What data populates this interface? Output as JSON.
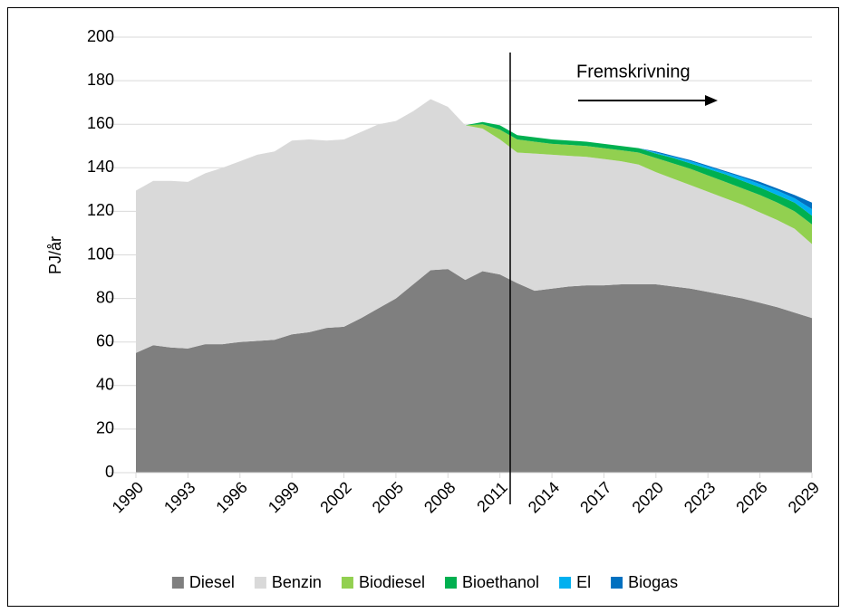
{
  "chart_data": {
    "type": "stacked_area",
    "y_label": "PJ/år",
    "annotation": "Fremskrivning",
    "x": [
      1990,
      1991,
      1992,
      1993,
      1994,
      1995,
      1996,
      1997,
      1998,
      1999,
      2000,
      2001,
      2002,
      2003,
      2004,
      2005,
      2006,
      2007,
      2008,
      2009,
      2010,
      2011,
      2012,
      2013,
      2014,
      2015,
      2016,
      2017,
      2018,
      2019,
      2020,
      2021,
      2022,
      2023,
      2024,
      2025,
      2026,
      2027,
      2028,
      2029
    ],
    "xlim": [
      1990,
      2029
    ],
    "xticks": [
      1990,
      1993,
      1996,
      1999,
      2002,
      2005,
      2008,
      2011,
      2014,
      2017,
      2020,
      2023,
      2026,
      2029
    ],
    "ylim": [
      0,
      200
    ],
    "yticks": [
      0,
      20,
      40,
      60,
      80,
      100,
      120,
      140,
      160,
      180,
      200
    ],
    "grid": true,
    "legend": "bottom",
    "series": [
      {
        "name": "Diesel",
        "color": "#7f7f7f",
        "values": [
          55,
          58.5,
          57.5,
          57,
          59,
          59,
          60,
          60.5,
          61,
          63.5,
          64.5,
          66.5,
          67,
          71,
          75.5,
          80,
          86.5,
          93,
          93.5,
          88.5,
          92.5,
          91,
          87,
          83.5,
          84.5,
          85.5,
          86,
          86,
          86.5,
          86.5,
          86.5,
          85.5,
          84.5,
          83,
          81.5,
          80,
          78,
          76,
          73.5,
          71
        ]
      },
      {
        "name": "Benzin",
        "color": "#d9d9d9",
        "values": [
          74.5,
          75.5,
          76.5,
          76.5,
          78.5,
          81,
          83,
          85.5,
          86.5,
          89,
          88.5,
          86,
          86,
          85.5,
          84.5,
          81.5,
          79.5,
          78.5,
          74.5,
          71,
          65.5,
          62,
          60,
          63,
          61.5,
          60,
          59,
          58,
          56.5,
          55,
          51.5,
          49.5,
          47.5,
          46,
          44.5,
          43,
          41.5,
          40,
          38.5,
          34
        ]
      },
      {
        "name": "Biodiesel",
        "color": "#92d050",
        "values": [
          0,
          0,
          0,
          0,
          0,
          0,
          0,
          0,
          0,
          0,
          0,
          0,
          0,
          0,
          0,
          0,
          0,
          0,
          0,
          0,
          2,
          4.5,
          6,
          5.5,
          5,
          5,
          5,
          5,
          5,
          5.5,
          6.5,
          7,
          7.5,
          7.5,
          7.5,
          7.5,
          8,
          8,
          8,
          9
        ]
      },
      {
        "name": "Bioethanol",
        "color": "#00b050",
        "values": [
          0,
          0,
          0,
          0,
          0,
          0,
          0,
          0,
          0,
          0,
          0,
          0,
          0,
          0,
          0,
          0,
          0,
          0,
          0,
          0,
          1,
          2,
          2,
          2,
          2,
          2,
          2,
          2,
          2,
          2,
          2,
          2.5,
          2.5,
          3,
          3.5,
          3.5,
          3.5,
          3.5,
          4,
          4
        ]
      },
      {
        "name": "El",
        "color": "#00b0f0",
        "values": [
          0,
          0,
          0,
          0,
          0,
          0,
          0,
          0,
          0,
          0,
          0,
          0,
          0,
          0,
          0,
          0,
          0,
          0,
          0,
          0,
          0,
          0,
          0,
          0,
          0,
          0,
          0,
          0,
          0,
          0,
          0.5,
          0.5,
          1,
          1,
          1,
          1.5,
          1.5,
          2,
          2,
          3
        ]
      },
      {
        "name": "Biogas",
        "color": "#0070c0",
        "values": [
          0,
          0,
          0,
          0,
          0,
          0,
          0,
          0,
          0,
          0,
          0,
          0,
          0,
          0,
          0,
          0,
          0,
          0,
          0,
          0,
          0,
          0,
          0,
          0,
          0,
          0,
          0,
          0,
          0,
          0,
          0.5,
          0.5,
          0.5,
          0.5,
          0.5,
          0.5,
          1,
          1,
          1.5,
          3
        ]
      }
    ]
  }
}
